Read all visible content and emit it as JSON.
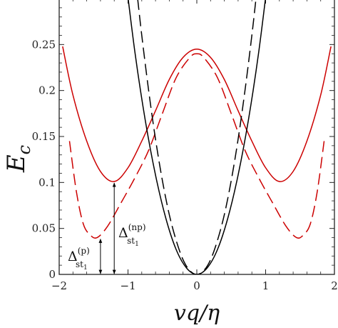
{
  "chart_data": {
    "type": "line",
    "title": "",
    "xlabel": "vq/η",
    "ylabel": "E",
    "ylabel_sub": "c",
    "xlim": [
      -2,
      2
    ],
    "ylim": [
      0,
      0.3
    ],
    "x_ticks": [
      -2,
      -1,
      0,
      1,
      2
    ],
    "x_tick_labels": [
      "−2",
      "−1",
      "0",
      "1",
      "2"
    ],
    "y_ticks": [
      0,
      0.05,
      0.1,
      0.15,
      0.2,
      0.25
    ],
    "y_tick_labels": [
      "0",
      "0.05",
      "0.1",
      "0.15",
      "0.2",
      "0.25"
    ],
    "grid": false,
    "series": [
      {
        "style": "solid",
        "color": "#cc0000",
        "x": [
          -1.95,
          -1.8,
          -1.6,
          -1.4,
          -1.2,
          -1.0,
          -0.8,
          -0.6,
          -0.4,
          -0.2,
          0.0,
          0.2,
          0.4,
          0.6,
          0.8,
          1.0,
          1.2,
          1.4,
          1.6,
          1.8,
          1.95
        ],
        "y": [
          0.248,
          0.195,
          0.145,
          0.112,
          0.101,
          0.116,
          0.145,
          0.178,
          0.212,
          0.236,
          0.245,
          0.236,
          0.212,
          0.178,
          0.145,
          0.116,
          0.101,
          0.112,
          0.145,
          0.195,
          0.248
        ]
      },
      {
        "style": "dashed",
        "color": "#cc0000",
        "x": [
          -1.85,
          -1.75,
          -1.65,
          -1.55,
          -1.45,
          -1.3,
          -1.1,
          -0.9,
          -0.7,
          -0.5,
          -0.3,
          -0.1,
          0.0,
          0.1,
          0.3,
          0.5,
          0.7,
          0.9,
          1.1,
          1.3,
          1.45,
          1.55,
          1.65,
          1.75,
          1.85
        ],
        "y": [
          0.145,
          0.09,
          0.055,
          0.043,
          0.04,
          0.052,
          0.078,
          0.105,
          0.135,
          0.175,
          0.214,
          0.236,
          0.24,
          0.236,
          0.214,
          0.175,
          0.135,
          0.105,
          0.078,
          0.052,
          0.04,
          0.043,
          0.055,
          0.09,
          0.145
        ]
      },
      {
        "style": "solid",
        "color": "#000000",
        "x": [
          -1.05,
          -0.9,
          -0.75,
          -0.6,
          -0.45,
          -0.3,
          -0.15,
          0.0,
          0.15,
          0.3,
          0.45,
          0.6,
          0.75,
          0.9,
          1.05
        ],
        "y": [
          0.332,
          0.242,
          0.168,
          0.108,
          0.061,
          0.027,
          0.007,
          0.0,
          0.007,
          0.027,
          0.061,
          0.108,
          0.168,
          0.242,
          0.332
        ]
      },
      {
        "style": "dashed",
        "color": "#000000",
        "x": [
          -0.86,
          -0.8,
          -0.7,
          -0.6,
          -0.5,
          -0.4,
          -0.3,
          -0.2,
          -0.1,
          0.0,
          0.1,
          0.2,
          0.3,
          0.4,
          0.5,
          0.6,
          0.7,
          0.8,
          0.86
        ],
        "y": [
          0.3,
          0.26,
          0.2,
          0.147,
          0.102,
          0.065,
          0.037,
          0.016,
          0.004,
          0.0,
          0.004,
          0.016,
          0.037,
          0.065,
          0.102,
          0.147,
          0.2,
          0.26,
          0.3
        ]
      }
    ],
    "annotations": [
      {
        "base": "Δ",
        "sub": "st",
        "subsub": "1",
        "sup": "(np)",
        "x_data": -1.2,
        "y_from": 0.0,
        "y_to": 0.101
      },
      {
        "base": "Δ",
        "sub": "st",
        "subsub": "1",
        "sup": "(p)",
        "x_data": -1.4,
        "y_from": 0.0,
        "y_to": 0.04
      }
    ]
  }
}
